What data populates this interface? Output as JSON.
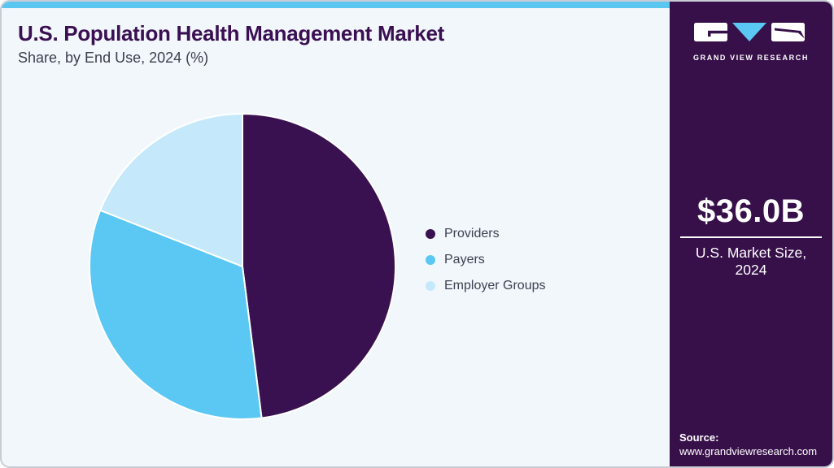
{
  "header": {
    "title": "U.S. Population Health Management Market",
    "subtitle": "Share, by End Use, 2024 (%)"
  },
  "chart_data": {
    "type": "pie",
    "title": "U.S. Population Health Management Market Share, by End Use, 2024 (%)",
    "categories": [
      "Providers",
      "Payers",
      "Employer Groups"
    ],
    "values": [
      48,
      33,
      19
    ],
    "unit": "%",
    "colors": [
      "#3A1150",
      "#5BC8F3",
      "#C5E9FB"
    ],
    "start_angle_deg": 0,
    "direction": "clockwise",
    "legend_position": "right",
    "data_labels": false
  },
  "sidebar": {
    "brand": "GRAND VIEW RESEARCH",
    "market_size_value": "$36.0B",
    "market_size_label_line1": "U.S. Market Size,",
    "market_size_label_line2": "2024",
    "source_label": "Source:",
    "source_url": "www.grandviewresearch.com"
  },
  "theme": {
    "accent_bar": "#5BC7F0",
    "card_background": "#F1F7FB",
    "sidebar_background": "#37104A",
    "title_color": "#3B1053",
    "body_text_color": "#3D3D4C",
    "legend_text_color": "#3F4050",
    "frame_border": "#C9CCD4",
    "logo_triangle": "#5BC8F3",
    "white": "#FFFFFF"
  }
}
